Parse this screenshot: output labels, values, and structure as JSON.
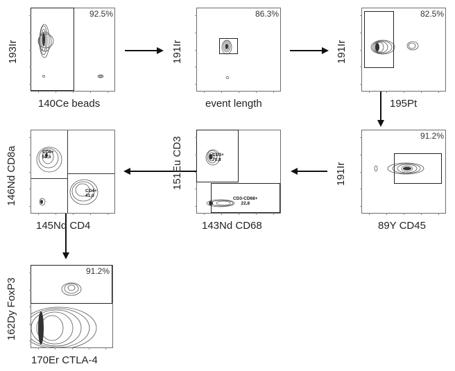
{
  "panels": [
    {
      "id": "p1",
      "xlabel": "140Ce beads",
      "ylabel": "193Ir",
      "percent": "92.5%"
    },
    {
      "id": "p2",
      "xlabel": "event length",
      "ylabel": "191Ir",
      "percent": "86.3%"
    },
    {
      "id": "p3",
      "xlabel": "195Pt",
      "ylabel": "191Ir",
      "percent": "82.5%"
    },
    {
      "id": "p4",
      "xlabel": "89Y CD45",
      "ylabel": "191Ir",
      "percent": "91.2%"
    },
    {
      "id": "p5",
      "xlabel": "143Nd CD68",
      "ylabel": "151Eu CD3",
      "gates": [
        {
          "name": "CD3+",
          "value": "70,8"
        },
        {
          "name": "CD3-CD68+",
          "value": "22,8"
        }
      ]
    },
    {
      "id": "p6",
      "xlabel": "145Nd CD4",
      "ylabel": "146Nd CD8a",
      "gates": [
        {
          "name": "CD8+",
          "value": "52,5"
        },
        {
          "name": "CD4+",
          "value": "41,0"
        }
      ]
    },
    {
      "id": "p7",
      "xlabel": "170Er CTLA-4",
      "ylabel": "162Dy FoxP3",
      "percent": "91.2%"
    }
  ],
  "colors": {
    "contour": "#555555",
    "frame": "#6b6b6b",
    "arrow": "#111111"
  }
}
